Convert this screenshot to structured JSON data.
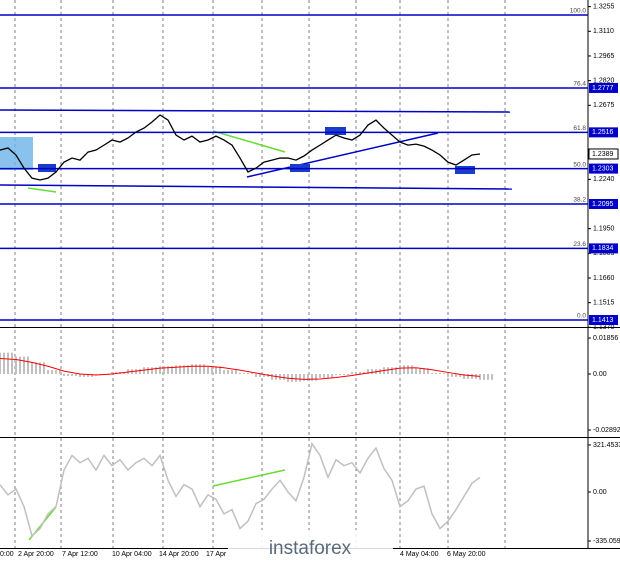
{
  "chart_data": [
    {
      "type": "line",
      "color": "#000000",
      "ylim": [
        1.1372,
        1.3294
      ],
      "yticks": [
        {
          "value": 1.3255,
          "label": "1.3255"
        },
        {
          "value": 1.311,
          "label": "1.3110"
        },
        {
          "value": 1.2965,
          "label": "1.2965"
        },
        {
          "value": 1.282,
          "label": "1.2820"
        },
        {
          "value": 1.2675,
          "label": "1.2675"
        },
        {
          "value": 1.224,
          "label": "1.2240"
        },
        {
          "value": 1.195,
          "label": "1.1950"
        },
        {
          "value": 1.1805,
          "label": "1.1805"
        },
        {
          "value": 1.166,
          "label": "1.1660"
        },
        {
          "value": 1.1515,
          "label": "1.1515"
        },
        {
          "value": 1.137,
          "label": "1.1370"
        }
      ],
      "fib_color": "#0000c8",
      "fib_levels": [
        {
          "name": "100.0",
          "value": 1.3206
        },
        {
          "name": "76.4",
          "value": 1.2777,
          "label": "1.2777"
        },
        {
          "name": "61.8",
          "value": 1.2516,
          "label": "1.2516"
        },
        {
          "name": "50.0",
          "value": 1.2303,
          "label": "1.2303"
        },
        {
          "name": "38.2",
          "value": 1.2095,
          "label": "1.2095"
        },
        {
          "name": "23.6",
          "value": 1.1834,
          "label": "1.1834"
        },
        {
          "name": "0.0",
          "value": 1.1413,
          "label": "1.1413"
        }
      ],
      "current_price": 1.2389,
      "values": [
        1.2412,
        1.2424,
        1.2383,
        1.2306,
        1.2247,
        1.2236,
        1.2247,
        1.2283,
        1.2341,
        1.2365,
        1.2353,
        1.24,
        1.2412,
        1.2441,
        1.2471,
        1.2459,
        1.2483,
        1.2518,
        1.2541,
        1.2577,
        1.2618,
        1.2588,
        1.25,
        1.2471,
        1.2494,
        1.2459,
        1.2471,
        1.2494,
        1.2471,
        1.2441,
        1.2365,
        1.2283,
        1.2306,
        1.2341,
        1.2353,
        1.2365,
        1.2365,
        1.2353,
        1.2377,
        1.2412,
        1.2441,
        1.2471,
        1.25,
        1.2483,
        1.2471,
        1.25,
        1.2559,
        1.2588,
        1.2541,
        1.25,
        1.2459,
        1.2441,
        1.2447,
        1.2435,
        1.2412,
        1.2383,
        1.2341,
        1.2324,
        1.2353,
        1.2383,
        1.2389
      ]
    },
    {
      "type": "bar",
      "color": "#c0c0c0",
      "signal_color": "#ff0000",
      "ylim": [
        -0.032,
        0.0227
      ],
      "yticks": [
        0.01856,
        {
          "value": 0,
          "label": "0.00"
        },
        -0.02892
      ],
      "values": [
        0.011,
        0.009,
        0.006,
        0.002,
        -0.001,
        -0.0015,
        -0.0005,
        0.001,
        0.0025,
        0.0035,
        0.004,
        0.0045,
        0.005,
        0.004,
        0.002,
        0.0005,
        -0.0015,
        -0.003,
        -0.004,
        -0.0035,
        -0.002,
        -0.0005,
        0.001,
        0.0025,
        0.0035,
        0.0045,
        0.003,
        0.0005,
        -0.0015,
        -0.0025,
        -0.003
      ],
      "signal": [
        0.008,
        0.0075,
        0.006,
        0.004,
        0.0015,
        0.0,
        -0.0005,
        0.0,
        0.001,
        0.002,
        0.003,
        0.0035,
        0.004,
        0.004,
        0.0032,
        0.002,
        0.0005,
        -0.001,
        -0.0022,
        -0.0028,
        -0.0026,
        -0.0018,
        -0.0008,
        0.0005,
        0.0018,
        0.003,
        0.0032,
        0.0022,
        0.0008,
        -0.0005,
        -0.0012
      ]
    },
    {
      "type": "line",
      "color": "#c0c0c0",
      "ylim": [
        -383,
        369
      ],
      "yticks": [
        {
          "value": 321.4533,
          "label": "321.4533"
        },
        {
          "value": 0,
          "label": "0.00"
        },
        {
          "value": -335.0598,
          "label": "-335.0598"
        }
      ],
      "values": [
        50,
        -20,
        20,
        -100,
        -300,
        -250,
        -150,
        -100,
        150,
        250,
        200,
        230,
        150,
        250,
        180,
        220,
        150,
        200,
        230,
        180,
        250,
        80,
        -30,
        50,
        20,
        -100,
        -20,
        -50,
        -150,
        -120,
        -250,
        -200,
        -80,
        -50,
        20,
        80,
        0,
        -60,
        100,
        330,
        250,
        100,
        220,
        180,
        200,
        130,
        230,
        300,
        160,
        80,
        -100,
        -60,
        20,
        40,
        -150,
        -250,
        -200,
        -120,
        -30,
        60,
        100
      ],
      "x_labels": [
        "0:00",
        "2 Apr 20:00",
        "7 Apr 12:00",
        "10 Apr 04:00",
        "14 Apr 20:00",
        "17 Apr",
        "4 May 04:00",
        "6 May 20:00"
      ]
    }
  ],
  "watermark": "instaforex"
}
